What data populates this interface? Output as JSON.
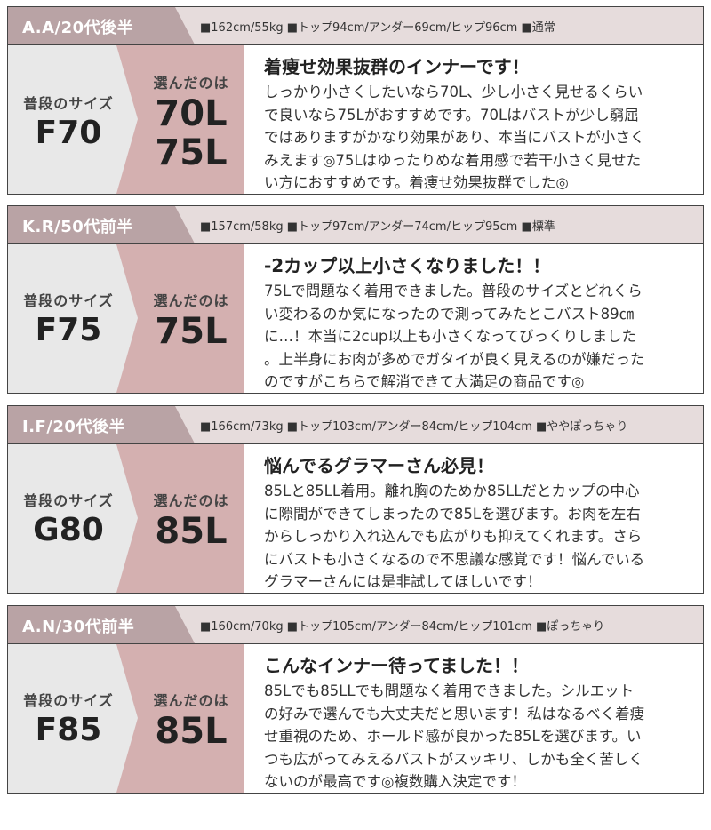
{
  "reviews": [
    {
      "name": "A.A/20代後半",
      "stats": "■162cm/55kg ■トップ94cm/アンダー69cm/ヒップ96cm ■通常",
      "usual_label": "普段のサイズ",
      "usual_size": "F70",
      "chosen_label": "選んだのは",
      "chosen_sizes": [
        "70L",
        "75L"
      ],
      "title": "着痩せ効果抜群のインナーです！",
      "lines": [
        "しっかり小さくしたいなら70L、少し小さく見せるくらい",
        "で良いなら75Lがおすすめです。70Lはバストが少し窮屈",
        "ではありますがかなり効果があり、本当にバストが小さく",
        "みえます◎75Lはゆったりめな着用感で若干小さく見せた",
        "い方におすすめです。着痩せ効果抜群でした◎"
      ]
    },
    {
      "name": "K.R/50代前半",
      "stats": "■157cm/58kg ■トップ97cm/アンダー74cm/ヒップ95cm ■標準",
      "usual_label": "普段のサイズ",
      "usual_size": "F75",
      "chosen_label": "選んだのは",
      "chosen_sizes": [
        "75L"
      ],
      "title": "-2カップ以上小さくなりました！！",
      "lines": [
        "75Lで問題なく着用できました。普段のサイズとどれくら",
        "い変わるのか気になったので測ってみたとこバスト89㎝",
        "に…！本当に2cup以上も小さくなってびっくりしました",
        "。上半身にお肉が多めでガタイが良く見えるのが嫌だった",
        "のですがこちらで解消できて大満足の商品です◎"
      ]
    },
    {
      "name": "I.F/20代後半",
      "stats": "■166cm/73kg ■トップ103cm/アンダー84cm/ヒップ104cm ■ややぽっちゃり",
      "usual_label": "普段のサイズ",
      "usual_size": "G80",
      "chosen_label": "選んだのは",
      "chosen_sizes": [
        "85L"
      ],
      "title": "悩んでるグラマーさん必見！",
      "lines": [
        "85Lと85LL着用。離れ胸のためか85LLだとカップの中心",
        "に隙間ができてしまったので85Lを選びます。お肉を左右",
        "からしっかり入れ込んでも広がりも抑えてくれます。さら",
        "にバストも小さくなるので不思議な感覚です！悩んでいる",
        "グラマーさんには是非試してほしいです！"
      ]
    },
    {
      "name": "A.N/30代前半",
      "stats": "■160cm/70kg ■トップ105cm/アンダー84cm/ヒップ101cm ■ぽっちゃり",
      "usual_label": "普段のサイズ",
      "usual_size": "F85",
      "chosen_label": "選んだのは",
      "chosen_sizes": [
        "85L"
      ],
      "title": "こんなインナー待ってました！！",
      "lines": [
        "85Lでも85LLでも問題なく着用できました。シルエット",
        "の好みで選んでも大丈夫だと思います！私はなるべく着痩",
        "せ重視のため、ホールド感が良かった85Lを選びます。い",
        "つも広がってみえるバストがスッキリ、しかも全く苦しく",
        "ないのが最高です◎複数購入決定です！"
      ]
    }
  ],
  "colors": {
    "tab": "#b9a3a5",
    "header": "#e6dcdc",
    "usual_bg": "#e8e8e8",
    "chosen_bg": "#d4b0b0"
  }
}
